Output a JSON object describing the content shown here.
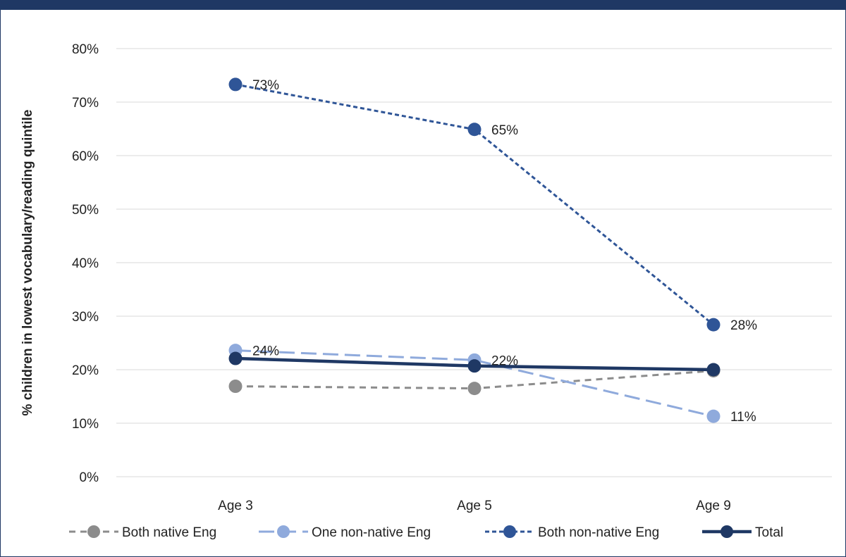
{
  "chart_data": {
    "type": "line",
    "title": "",
    "xlabel": "",
    "ylabel": "% children in lowest vocabulary/reading quintile",
    "categories": [
      "Age 3",
      "Age 5",
      "Age 9"
    ],
    "ylim": [
      0,
      80
    ],
    "yticks": [
      0,
      10,
      20,
      30,
      40,
      50,
      60,
      70,
      80
    ],
    "ytick_labels": [
      "0%",
      "10%",
      "20%",
      "30%",
      "40%",
      "50%",
      "60%",
      "70%",
      "80%"
    ],
    "grid": true,
    "legend_position": "bottom",
    "series": [
      {
        "name": "Both native Eng",
        "values": [
          16.9,
          16.5,
          19.8
        ],
        "color": "#8c8c8c",
        "dash": "dashed",
        "labels": [
          "",
          "",
          ""
        ]
      },
      {
        "name": "One non-native Eng",
        "values": [
          23.6,
          21.8,
          11.3
        ],
        "color": "#8faadc",
        "dash": "long-dash",
        "labels": [
          "24%",
          "22%",
          "11%"
        ]
      },
      {
        "name": "Both non-native Eng",
        "values": [
          73.3,
          64.9,
          28.4
        ],
        "color": "#2f5597",
        "dash": "dotted",
        "labels": [
          "73%",
          "65%",
          "28%"
        ]
      },
      {
        "name": "Total",
        "values": [
          22.1,
          20.7,
          20.0
        ],
        "color": "#1f3864",
        "dash": "solid",
        "labels": [
          "",
          "",
          ""
        ]
      }
    ]
  }
}
